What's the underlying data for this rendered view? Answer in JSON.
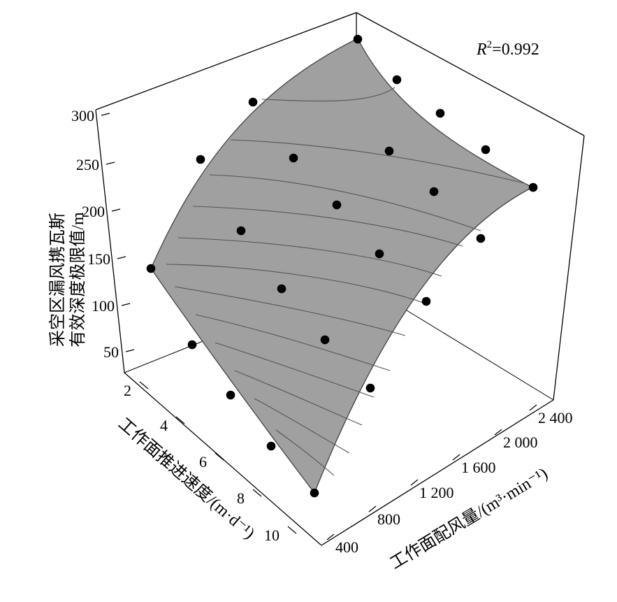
{
  "chart_data": {
    "type": "surface3d",
    "annotation": {
      "base": "R",
      "sup": "2",
      "rest": "=0.992"
    },
    "z_axis": {
      "label_line1": "采空区漏风携瓦斯",
      "label_line2": "有效深度极限值/m",
      "ticks": [
        "300",
        "250",
        "200",
        "150",
        "100",
        "50"
      ]
    },
    "x_axis": {
      "label": "工作面推进速度/(m·d⁻¹)",
      "ticks": [
        "2",
        "4",
        "6",
        "8",
        "10"
      ]
    },
    "y_axis": {
      "label": "工作面配风量/(m³·min⁻¹)",
      "ticks": [
        "400",
        "800",
        "1 200",
        "1 600",
        "2 000",
        "2 400"
      ]
    },
    "surface_color": "#a0a0a0",
    "point_color": "#000000",
    "grid": false
  }
}
